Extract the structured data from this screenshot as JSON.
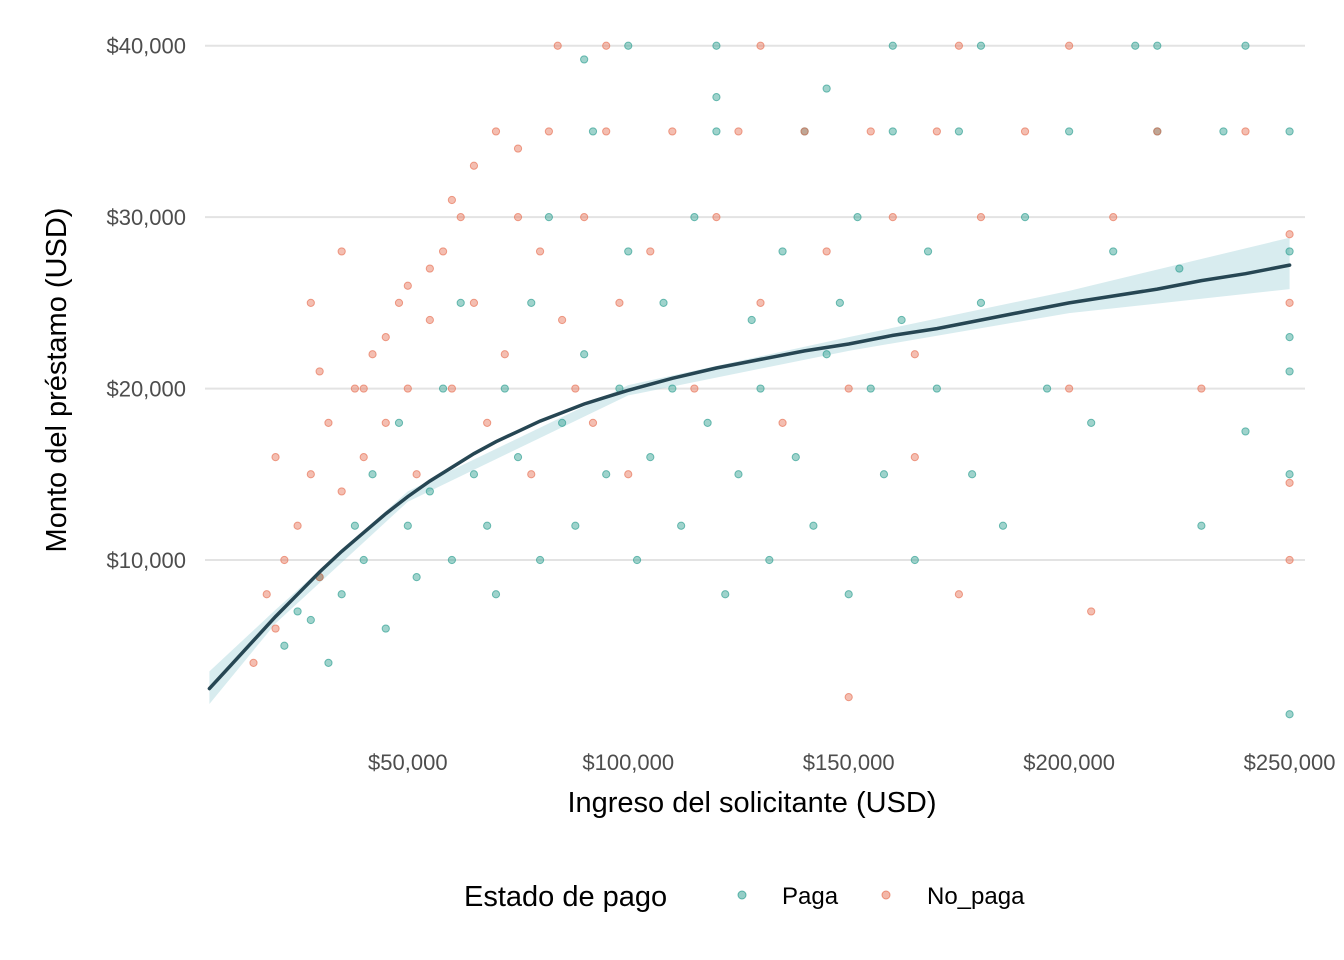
{
  "chart_data": {
    "type": "scatter",
    "xlabel": "Ingreso del solicitante (USD)",
    "ylabel": "Monto del préstamo (USD)",
    "xlim": [
      4000,
      253500
    ],
    "ylim": [
      200,
      41500
    ],
    "x_ticks": [
      {
        "value": 50000,
        "label": "$50,000"
      },
      {
        "value": 100000,
        "label": "$100,000"
      },
      {
        "value": 150000,
        "label": "$150,000"
      },
      {
        "value": 200000,
        "label": "$200,000"
      },
      {
        "value": 250000,
        "label": "$250,000"
      }
    ],
    "y_ticks": [
      {
        "value": 10000,
        "label": "$10,000"
      },
      {
        "value": 20000,
        "label": "$20,000"
      },
      {
        "value": 30000,
        "label": "$30,000"
      },
      {
        "value": 40000,
        "label": "$40,000"
      }
    ],
    "grid": true,
    "legend": {
      "title": "Estado de pago",
      "position": "bottom",
      "entries": [
        {
          "name": "Paga",
          "color": "#2a9d8f"
        },
        {
          "name": "No_paga",
          "color": "#e76f51"
        }
      ]
    },
    "point_alpha": 0.45,
    "point_size_note": "small circles",
    "series": [
      {
        "name": "Paga",
        "color": "#2a9d8f",
        "points": [
          [
            22000,
            5000
          ],
          [
            25000,
            7000
          ],
          [
            28000,
            6500
          ],
          [
            30000,
            9000
          ],
          [
            32000,
            4000
          ],
          [
            35000,
            8000
          ],
          [
            38000,
            12000
          ],
          [
            40000,
            10000
          ],
          [
            42000,
            15000
          ],
          [
            45000,
            6000
          ],
          [
            48000,
            18000
          ],
          [
            50000,
            12000
          ],
          [
            52000,
            9000
          ],
          [
            55000,
            14000
          ],
          [
            58000,
            20000
          ],
          [
            60000,
            10000
          ],
          [
            62000,
            25000
          ],
          [
            65000,
            15000
          ],
          [
            68000,
            12000
          ],
          [
            70000,
            8000
          ],
          [
            72000,
            20000
          ],
          [
            75000,
            16000
          ],
          [
            78000,
            25000
          ],
          [
            80000,
            10000
          ],
          [
            82000,
            30000
          ],
          [
            85000,
            18000
          ],
          [
            88000,
            12000
          ],
          [
            90000,
            22000
          ],
          [
            92000,
            35000
          ],
          [
            95000,
            15000
          ],
          [
            98000,
            20000
          ],
          [
            100000,
            28000
          ],
          [
            102000,
            10000
          ],
          [
            105000,
            16000
          ],
          [
            108000,
            25000
          ],
          [
            110000,
            20000
          ],
          [
            112000,
            12000
          ],
          [
            115000,
            30000
          ],
          [
            118000,
            18000
          ],
          [
            120000,
            35000
          ],
          [
            122000,
            8000
          ],
          [
            125000,
            15000
          ],
          [
            128000,
            24000
          ],
          [
            130000,
            20000
          ],
          [
            132000,
            10000
          ],
          [
            135000,
            28000
          ],
          [
            138000,
            16000
          ],
          [
            140000,
            35000
          ],
          [
            142000,
            12000
          ],
          [
            145000,
            22000
          ],
          [
            148000,
            25000
          ],
          [
            150000,
            8000
          ],
          [
            152000,
            30000
          ],
          [
            155000,
            20000
          ],
          [
            158000,
            15000
          ],
          [
            160000,
            35000
          ],
          [
            162000,
            24000
          ],
          [
            165000,
            10000
          ],
          [
            168000,
            28000
          ],
          [
            170000,
            20000
          ],
          [
            175000,
            35000
          ],
          [
            178000,
            15000
          ],
          [
            180000,
            25000
          ],
          [
            185000,
            12000
          ],
          [
            190000,
            30000
          ],
          [
            195000,
            20000
          ],
          [
            200000,
            35000
          ],
          [
            205000,
            18000
          ],
          [
            210000,
            28000
          ],
          [
            215000,
            40000
          ],
          [
            220000,
            35000
          ],
          [
            225000,
            27000
          ],
          [
            230000,
            12000
          ],
          [
            235000,
            35000
          ],
          [
            240000,
            40000
          ],
          [
            250000,
            35000
          ],
          [
            250000,
            15000
          ],
          [
            250000,
            1000
          ],
          [
            160000,
            40000
          ],
          [
            120000,
            40000
          ],
          [
            100000,
            40000
          ],
          [
            90000,
            39200
          ],
          [
            180000,
            40000
          ],
          [
            220000,
            40000
          ],
          [
            145000,
            37500
          ],
          [
            120000,
            37000
          ],
          [
            250000,
            28000
          ],
          [
            250000,
            21000
          ],
          [
            250000,
            23000
          ],
          [
            240000,
            17500
          ]
        ]
      },
      {
        "name": "No_paga",
        "color": "#e76f51",
        "points": [
          [
            15000,
            4000
          ],
          [
            18000,
            8000
          ],
          [
            20000,
            6000
          ],
          [
            22000,
            10000
          ],
          [
            25000,
            12000
          ],
          [
            28000,
            15000
          ],
          [
            30000,
            9000
          ],
          [
            32000,
            18000
          ],
          [
            35000,
            14000
          ],
          [
            38000,
            20000
          ],
          [
            40000,
            16000
          ],
          [
            42000,
            22000
          ],
          [
            45000,
            18000
          ],
          [
            48000,
            25000
          ],
          [
            50000,
            20000
          ],
          [
            52000,
            15000
          ],
          [
            55000,
            24000
          ],
          [
            58000,
            28000
          ],
          [
            60000,
            20000
          ],
          [
            62000,
            30000
          ],
          [
            65000,
            25000
          ],
          [
            68000,
            18000
          ],
          [
            70000,
            35000
          ],
          [
            72000,
            22000
          ],
          [
            75000,
            30000
          ],
          [
            78000,
            15000
          ],
          [
            80000,
            28000
          ],
          [
            82000,
            35000
          ],
          [
            85000,
            24000
          ],
          [
            88000,
            20000
          ],
          [
            90000,
            30000
          ],
          [
            92000,
            18000
          ],
          [
            95000,
            35000
          ],
          [
            98000,
            25000
          ],
          [
            100000,
            15000
          ],
          [
            105000,
            28000
          ],
          [
            110000,
            35000
          ],
          [
            115000,
            20000
          ],
          [
            120000,
            30000
          ],
          [
            125000,
            35000
          ],
          [
            130000,
            25000
          ],
          [
            135000,
            18000
          ],
          [
            140000,
            35000
          ],
          [
            145000,
            28000
          ],
          [
            150000,
            20000
          ],
          [
            155000,
            35000
          ],
          [
            160000,
            30000
          ],
          [
            165000,
            22000
          ],
          [
            170000,
            35000
          ],
          [
            175000,
            40000
          ],
          [
            180000,
            30000
          ],
          [
            190000,
            35000
          ],
          [
            200000,
            40000
          ],
          [
            210000,
            30000
          ],
          [
            220000,
            35000
          ],
          [
            230000,
            20000
          ],
          [
            240000,
            35000
          ],
          [
            250000,
            25000
          ],
          [
            250000,
            29000
          ],
          [
            250000,
            10000
          ],
          [
            250000,
            14500
          ],
          [
            84000,
            40000
          ],
          [
            95000,
            40000
          ],
          [
            130000,
            40000
          ],
          [
            175000,
            8000
          ],
          [
            200000,
            20000
          ],
          [
            205000,
            7000
          ],
          [
            165000,
            16000
          ],
          [
            35000,
            28000
          ],
          [
            28000,
            25000
          ],
          [
            20000,
            16000
          ],
          [
            30000,
            21000
          ],
          [
            40000,
            20000
          ],
          [
            45000,
            23000
          ],
          [
            50000,
            26000
          ],
          [
            55000,
            27000
          ],
          [
            60000,
            31000
          ],
          [
            65000,
            33000
          ],
          [
            75000,
            34000
          ],
          [
            150000,
            2000
          ]
        ]
      }
    ],
    "smooth_line": {
      "color": "#264653",
      "band_color": "#a8d5dc",
      "points": [
        [
          5000,
          2500
        ],
        [
          10000,
          3900
        ],
        [
          15000,
          5300
        ],
        [
          20000,
          6700
        ],
        [
          25000,
          8000
        ],
        [
          30000,
          9300
        ],
        [
          35000,
          10500
        ],
        [
          40000,
          11600
        ],
        [
          45000,
          12700
        ],
        [
          50000,
          13700
        ],
        [
          55000,
          14600
        ],
        [
          60000,
          15400
        ],
        [
          65000,
          16200
        ],
        [
          70000,
          16900
        ],
        [
          75000,
          17500
        ],
        [
          80000,
          18100
        ],
        [
          85000,
          18600
        ],
        [
          90000,
          19100
        ],
        [
          95000,
          19500
        ],
        [
          100000,
          19900
        ],
        [
          110000,
          20600
        ],
        [
          120000,
          21200
        ],
        [
          130000,
          21700
        ],
        [
          140000,
          22200
        ],
        [
          150000,
          22600
        ],
        [
          160000,
          23100
        ],
        [
          170000,
          23500
        ],
        [
          180000,
          24000
        ],
        [
          190000,
          24500
        ],
        [
          200000,
          25000
        ],
        [
          210000,
          25400
        ],
        [
          220000,
          25800
        ],
        [
          230000,
          26300
        ],
        [
          240000,
          26700
        ],
        [
          250000,
          27200
        ]
      ],
      "band": [
        [
          5000,
          1600,
          3500
        ],
        [
          20000,
          6300,
          7100
        ],
        [
          50000,
          13400,
          14000
        ],
        [
          100000,
          19600,
          20200
        ],
        [
          150000,
          22200,
          23000
        ],
        [
          200000,
          24400,
          25700
        ],
        [
          250000,
          25800,
          28800
        ]
      ]
    }
  }
}
